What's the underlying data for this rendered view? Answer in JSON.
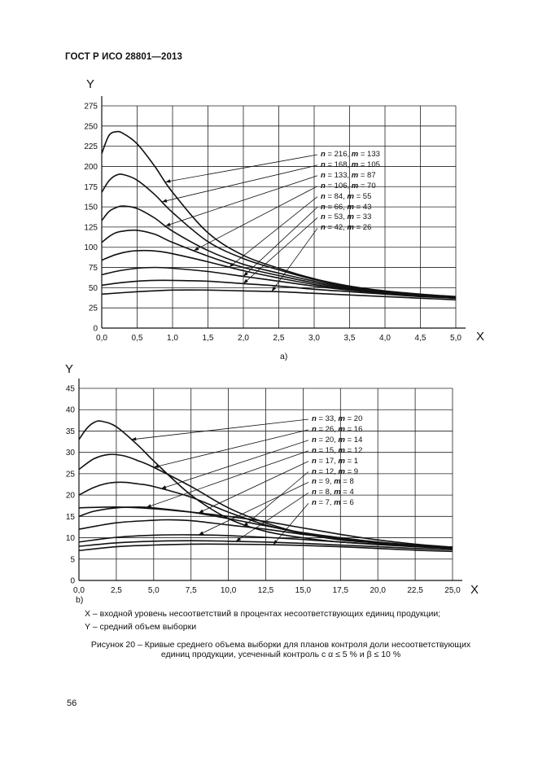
{
  "header": "ГОСТ Р ИСО 28801—2013",
  "page_number": "56",
  "notes": [
    "X – входной уровень несоответствий в процентах несоответствующих единиц продукции;",
    "Y – средний объем выборки"
  ],
  "caption": {
    "line1": "Рисунок 20 – Кривые среднего объема выборки для планов контроля доли несоответствующих",
    "line2": "единиц продукции, усеченный контроль с α ≤ 5 % и β ≤ 10 %"
  },
  "chart_data": [
    {
      "id": "a",
      "type": "line",
      "sublabel": "a)",
      "xlabel": "X",
      "ylabel": "Y",
      "xlim": [
        0,
        5.0
      ],
      "ylim": [
        0,
        275
      ],
      "xticks": [
        "0,0",
        "0,5",
        "1,0",
        "1,5",
        "2,0",
        "2,5",
        "3,0",
        "3,5",
        "4,0",
        "4,5",
        "5,0"
      ],
      "yticks": [
        "0",
        "25",
        "50",
        "75",
        "100",
        "125",
        "150",
        "175",
        "200",
        "225",
        "250",
        "275"
      ],
      "series": [
        {
          "n": "216",
          "m": "133",
          "label_n": "n = 216, ",
          "label_m": "m = 133",
          "x": [
            0,
            0.1,
            0.2,
            0.3,
            0.5,
            0.75,
            1.0,
            1.5,
            2.0,
            2.5,
            3.0,
            3.5,
            4.0,
            4.5,
            5.0
          ],
          "y": [
            216,
            238,
            243,
            241,
            228,
            200,
            168,
            118,
            90,
            74,
            61,
            52,
            46,
            42,
            39
          ]
        },
        {
          "n": "168",
          "m": "105",
          "label_n": "n = 168, ",
          "label_m": "m = 105",
          "x": [
            0,
            0.1,
            0.2,
            0.3,
            0.5,
            0.75,
            1.0,
            1.5,
            2.0,
            2.5,
            3.0,
            3.5,
            4.0,
            4.5,
            5.0
          ],
          "y": [
            168,
            182,
            189,
            190,
            183,
            165,
            143,
            107,
            86,
            72,
            60,
            51,
            45,
            41,
            38
          ]
        },
        {
          "n": "133",
          "m": "87",
          "label_n": "n = 133, ",
          "label_m": "m = 87",
          "x": [
            0,
            0.1,
            0.2,
            0.3,
            0.5,
            0.75,
            1.0,
            1.5,
            2.0,
            2.5,
            3.0,
            3.5,
            4.0,
            4.5,
            5.0
          ],
          "y": [
            133,
            144,
            149,
            151,
            148,
            136,
            120,
            96,
            79,
            68,
            58,
            50,
            45,
            41,
            38
          ]
        },
        {
          "n": "106",
          "m": "70",
          "label_n": "n = 106, ",
          "label_m": "m = 70",
          "x": [
            0,
            0.1,
            0.2,
            0.3,
            0.5,
            0.75,
            1.0,
            1.5,
            2.0,
            2.5,
            3.0,
            3.5,
            4.0,
            4.5,
            5.0
          ],
          "y": [
            106,
            113,
            118,
            120,
            121,
            116,
            106,
            89,
            75,
            65,
            56,
            49,
            44,
            40,
            38
          ]
        },
        {
          "n": "84",
          "m": "55",
          "label_n": "n = 84, ",
          "label_m": "m = 55",
          "x": [
            0,
            0.2,
            0.4,
            0.6,
            0.8,
            1.0,
            1.5,
            2.0,
            2.5,
            3.0,
            3.5,
            4.0,
            4.5,
            5.0
          ],
          "y": [
            84,
            91,
            95,
            96,
            95,
            92,
            82,
            71,
            62,
            54,
            48,
            44,
            40,
            37
          ]
        },
        {
          "n": "66",
          "m": "43",
          "label_n": "n = 66, ",
          "label_m": "m = 43",
          "x": [
            0,
            0.25,
            0.5,
            0.75,
            1.0,
            1.5,
            2.0,
            2.5,
            3.0,
            3.5,
            4.0,
            4.5,
            5.0
          ],
          "y": [
            66,
            71,
            74,
            75,
            74,
            70,
            64,
            58,
            52,
            47,
            43,
            40,
            37
          ]
        },
        {
          "n": "53",
          "m": "33",
          "label_n": "n = 53, ",
          "label_m": "m = 33",
          "x": [
            0,
            0.25,
            0.5,
            0.75,
            1.0,
            1.5,
            2.0,
            2.5,
            3.0,
            3.5,
            4.0,
            4.5,
            5.0
          ],
          "y": [
            53,
            56,
            58,
            59,
            59,
            58,
            55,
            52,
            48,
            45,
            42,
            39,
            37
          ]
        },
        {
          "n": "42",
          "m": "26",
          "label_n": "n = 42, ",
          "label_m": "m = 26",
          "x": [
            0,
            0.5,
            1.0,
            1.5,
            2.0,
            2.5,
            3.0,
            3.5,
            4.0,
            4.5,
            5.0
          ],
          "y": [
            42,
            45,
            47,
            47,
            46,
            45,
            43,
            41,
            39,
            37,
            35
          ]
        }
      ]
    },
    {
      "id": "b",
      "type": "line",
      "sublabel": "b)",
      "xlabel": "X",
      "ylabel": "Y",
      "xlim": [
        0,
        25.0
      ],
      "ylim": [
        0,
        45
      ],
      "xticks": [
        "0,0",
        "2,5",
        "5,0",
        "7,5",
        "10,0",
        "12,5",
        "15,0",
        "17,5",
        "20,0",
        "22,5",
        "25,0"
      ],
      "yticks": [
        "0",
        "5",
        "10",
        "15",
        "20",
        "25",
        "30",
        "35",
        "40",
        "45"
      ],
      "series": [
        {
          "n": "33",
          "m": "20",
          "label_n": "n = 33, ",
          "label_m": "m = 20",
          "x": [
            0,
            0.5,
            1.0,
            1.5,
            2.5,
            4.0,
            5.0,
            7.5,
            10.0,
            12.5,
            15.0,
            17.5,
            20.0,
            22.5,
            25.0
          ],
          "y": [
            33,
            35.5,
            37,
            37.3,
            36,
            31.5,
            28,
            20,
            14.5,
            11.5,
            10,
            9,
            8.5,
            8,
            7.5
          ]
        },
        {
          "n": "26",
          "m": "16",
          "label_n": "n = 26, ",
          "label_m": "m = 16",
          "x": [
            0,
            1.0,
            2.0,
            3.0,
            4.0,
            5.0,
            7.5,
            10.0,
            12.5,
            15.0,
            17.5,
            20.0,
            22.5,
            25.0
          ],
          "y": [
            26,
            28.5,
            29.5,
            29.2,
            28,
            26.5,
            22,
            17,
            13.5,
            11,
            9.5,
            8.8,
            8.2,
            7.8
          ]
        },
        {
          "n": "20",
          "m": "14",
          "label_n": "n = 20, ",
          "label_m": "m = 14",
          "x": [
            0,
            1.0,
            2.0,
            3.0,
            4.0,
            5.0,
            7.5,
            10.0,
            12.5,
            15.0,
            17.5,
            20.0,
            22.5,
            25.0
          ],
          "y": [
            20,
            21.8,
            22.8,
            23,
            22.6,
            22,
            19.5,
            16,
            13,
            11,
            9.6,
            8.8,
            8.2,
            7.8
          ]
        },
        {
          "n": "15",
          "m": "12",
          "label_n": "n = 15, ",
          "label_m": "m = 12",
          "x": [
            0,
            1.0,
            2.5,
            4.0,
            5.0,
            7.5,
            10.0,
            12.5,
            15.0,
            17.5,
            20.0,
            22.5,
            25.0
          ],
          "y": [
            15,
            16.2,
            17,
            17.2,
            17,
            16,
            14.5,
            12.8,
            11.2,
            10,
            9,
            8.3,
            7.8
          ]
        },
        {
          "n": "17",
          "m": "1",
          "label_n": "n = 17, ",
          "label_m": "m = 1",
          "x": [
            0,
            2.5,
            5.0,
            7.5,
            10.0,
            12.5,
            15.0,
            17.5,
            20.0,
            22.5,
            25.0
          ],
          "y": [
            17,
            17.2,
            16.8,
            16,
            15,
            13.8,
            12.3,
            10.8,
            9.5,
            8.5,
            7.8
          ]
        },
        {
          "n": "12",
          "m": "9",
          "label_n": "n = 12, ",
          "label_m": "m = 9",
          "x": [
            0,
            2.5,
            5.0,
            6.0,
            7.5,
            10.0,
            12.5,
            15.0,
            17.5,
            20.0,
            22.5,
            25.0
          ],
          "y": [
            12,
            13.5,
            14.1,
            14.2,
            14,
            13,
            12,
            10.8,
            9.8,
            8.8,
            8.1,
            7.6
          ]
        },
        {
          "n": "9",
          "m": "8",
          "label_n": "n = 9, ",
          "label_m": "m = 8",
          "x": [
            0,
            2.5,
            5.0,
            7.5,
            10.0,
            12.5,
            15.0,
            17.5,
            20.0,
            22.5,
            25.0
          ],
          "y": [
            9,
            10.1,
            10.6,
            10.7,
            10.5,
            10.1,
            9.6,
            9,
            8.4,
            7.9,
            7.5
          ]
        },
        {
          "n": "8",
          "m": "4",
          "label_n": "n = 8, ",
          "label_m": "m = 4",
          "x": [
            0,
            2.5,
            5.0,
            7.5,
            10.0,
            12.5,
            15.0,
            17.5,
            20.0,
            22.5,
            25.0
          ],
          "y": [
            8,
            8.8,
            9.2,
            9.3,
            9.2,
            9,
            8.7,
            8.3,
            7.9,
            7.5,
            7.2
          ]
        },
        {
          "n": "7",
          "m": "6",
          "label_n": "n = 7, ",
          "label_m": "m = 6",
          "x": [
            0,
            2.5,
            5.0,
            7.5,
            10.0,
            12.5,
            15.0,
            17.5,
            20.0,
            22.5,
            25.0
          ],
          "y": [
            7,
            7.9,
            8.3,
            8.5,
            8.5,
            8.4,
            8.2,
            7.9,
            7.5,
            7.1,
            6.8
          ]
        }
      ]
    }
  ]
}
